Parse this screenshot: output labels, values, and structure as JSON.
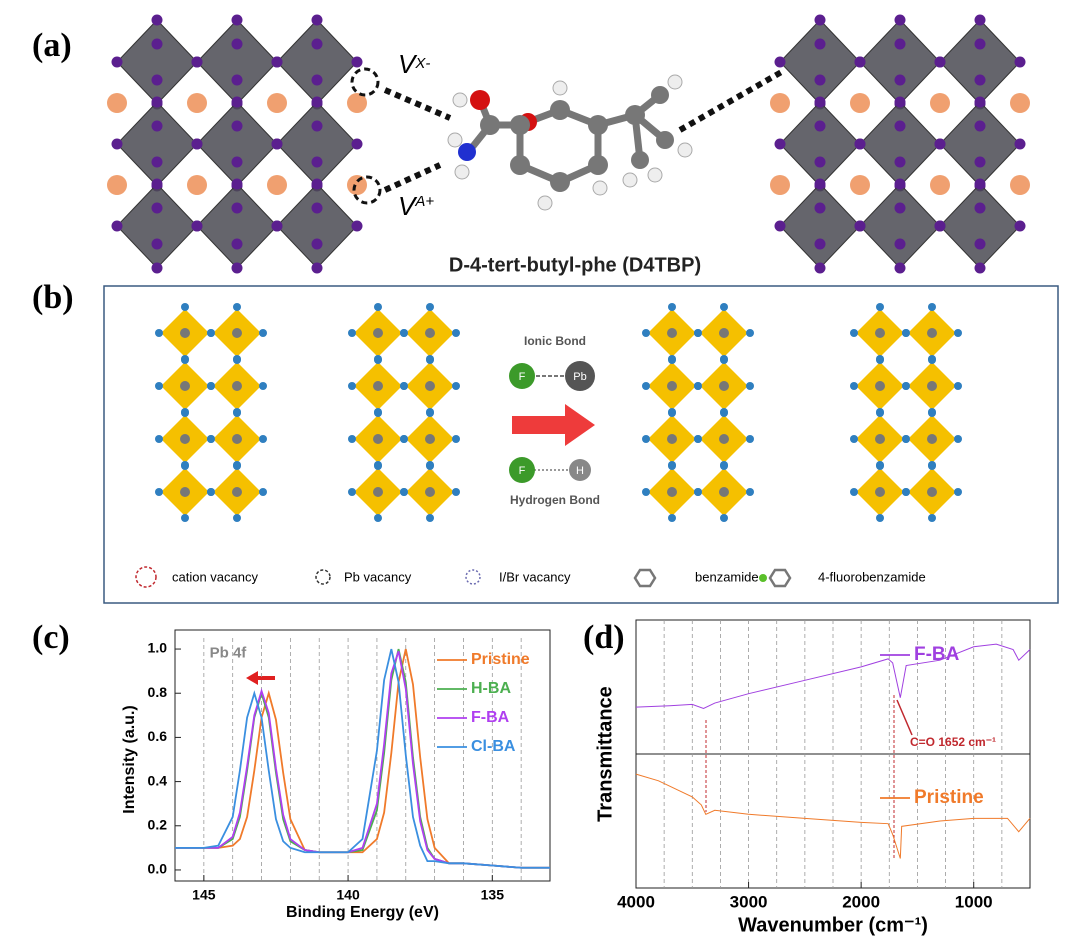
{
  "panel_a": {
    "label": "(a)",
    "vacancy_x": {
      "symbol": "V",
      "sub": "X-"
    },
    "vacancy_a": {
      "symbol": "V",
      "sub": "A+"
    },
    "molecule": "D-4-tert-butyl-phe (D4TBP)"
  },
  "panel_b": {
    "label": "(b)",
    "ionic_bond": "Ionic Bond",
    "hydrogen_bond": "Hydrogen Bond",
    "atoms": [
      "F",
      "Pb",
      "F",
      "H"
    ],
    "legend": [
      "cation vacancy",
      "Pb vacancy",
      "I/Br vacancy",
      "benzamide",
      "4-fluorobenzamide"
    ]
  },
  "chart_data": [
    {
      "type": "line",
      "label": "(c)",
      "annotation": "Pb 4f",
      "xlabel": "Binding Energy (eV)",
      "ylabel": "Intensity (a.u.)",
      "x": [
        146,
        145,
        144.5,
        144,
        143.75,
        143.5,
        143.25,
        143,
        142.75,
        142.5,
        142.25,
        142,
        141.5,
        141,
        140,
        139.5,
        139,
        138.75,
        138.5,
        138.25,
        138,
        137.75,
        137.5,
        137.25,
        137,
        136.5,
        136,
        135,
        134,
        133
      ],
      "series": [
        {
          "name": "Pristine",
          "color": "#f07a2a",
          "values": [
            0.1,
            0.1,
            0.1,
            0.11,
            0.14,
            0.24,
            0.45,
            0.69,
            0.8,
            0.68,
            0.44,
            0.23,
            0.09,
            0.08,
            0.08,
            0.08,
            0.14,
            0.26,
            0.53,
            0.85,
            1.0,
            0.84,
            0.51,
            0.23,
            0.1,
            0.03,
            0.03,
            0.02,
            0.01,
            0.01
          ]
        },
        {
          "name": "H-BA",
          "color": "#4caf50",
          "values": [
            0.1,
            0.1,
            0.1,
            0.14,
            0.24,
            0.45,
            0.69,
            0.8,
            0.69,
            0.44,
            0.23,
            0.13,
            0.09,
            0.08,
            0.08,
            0.09,
            0.27,
            0.53,
            0.86,
            1.0,
            0.85,
            0.51,
            0.24,
            0.1,
            0.05,
            0.03,
            0.03,
            0.02,
            0.01,
            0.01
          ]
        },
        {
          "name": "F-BA",
          "color": "#b03ff0",
          "values": [
            0.1,
            0.1,
            0.1,
            0.15,
            0.26,
            0.47,
            0.7,
            0.81,
            0.71,
            0.46,
            0.25,
            0.14,
            0.09,
            0.08,
            0.08,
            0.1,
            0.3,
            0.57,
            0.89,
            0.99,
            0.82,
            0.48,
            0.22,
            0.09,
            0.05,
            0.03,
            0.03,
            0.02,
            0.01,
            0.01
          ]
        },
        {
          "name": "Cl-BA",
          "color": "#3a8fe0",
          "values": [
            0.1,
            0.1,
            0.11,
            0.24,
            0.45,
            0.69,
            0.8,
            0.69,
            0.45,
            0.23,
            0.13,
            0.1,
            0.08,
            0.08,
            0.08,
            0.14,
            0.54,
            0.86,
            1.0,
            0.85,
            0.52,
            0.24,
            0.11,
            0.04,
            0.04,
            0.03,
            0.03,
            0.02,
            0.01,
            0.01
          ]
        }
      ],
      "xlim": [
        146,
        133
      ],
      "xticks": [
        145,
        140,
        135
      ],
      "xminorticks": [
        145,
        144,
        143,
        142,
        141,
        140,
        139,
        138,
        137,
        136,
        135,
        134
      ],
      "ylim": [
        -0.05,
        1.05
      ],
      "yticks": [
        {
          "value": 0,
          "label": "0.0"
        },
        0.2,
        0.4,
        0.6,
        0.8,
        {
          "value": 1,
          "label": "1.0"
        }
      ]
    },
    {
      "type": "line",
      "label": "(d)",
      "annotation": "C=O 1652 cm⁻¹",
      "xlabel": "Wavenumber (cm⁻¹)",
      "ylabel": "Transmittance",
      "series": [
        {
          "name": "F-BA",
          "color": "#a040e0",
          "x": [
            4000,
            3700,
            3500,
            3400,
            3300,
            3000,
            2500,
            2000,
            1760,
            1720,
            1652,
            1600,
            1300,
            1000,
            800,
            650,
            600,
            500
          ],
          "values": [
            1.35,
            1.36,
            1.37,
            1.34,
            1.38,
            1.45,
            1.55,
            1.65,
            1.71,
            1.68,
            1.42,
            1.66,
            1.7,
            1.8,
            1.82,
            1.78,
            1.7,
            1.78
          ]
        },
        {
          "name": "Pristine",
          "color": "#f07a2a",
          "x": [
            4000,
            3800,
            3500,
            3420,
            3380,
            3300,
            3000,
            2500,
            2000,
            1760,
            1720,
            1652,
            1640,
            1300,
            1000,
            700,
            600,
            500
          ],
          "values": [
            0.85,
            0.8,
            0.68,
            0.62,
            0.55,
            0.58,
            0.55,
            0.52,
            0.49,
            0.48,
            0.4,
            0.22,
            0.46,
            0.5,
            0.52,
            0.52,
            0.42,
            0.52
          ]
        }
      ],
      "xlim": [
        4000,
        500
      ],
      "xticks": [
        4000,
        3000,
        2000,
        1000
      ],
      "xminorticks": [
        3750,
        3500,
        3250,
        3000,
        2750,
        2500,
        2250,
        2000,
        1750,
        1500,
        1250,
        1000,
        750
      ],
      "ylim": [
        0,
        2
      ]
    }
  ]
}
